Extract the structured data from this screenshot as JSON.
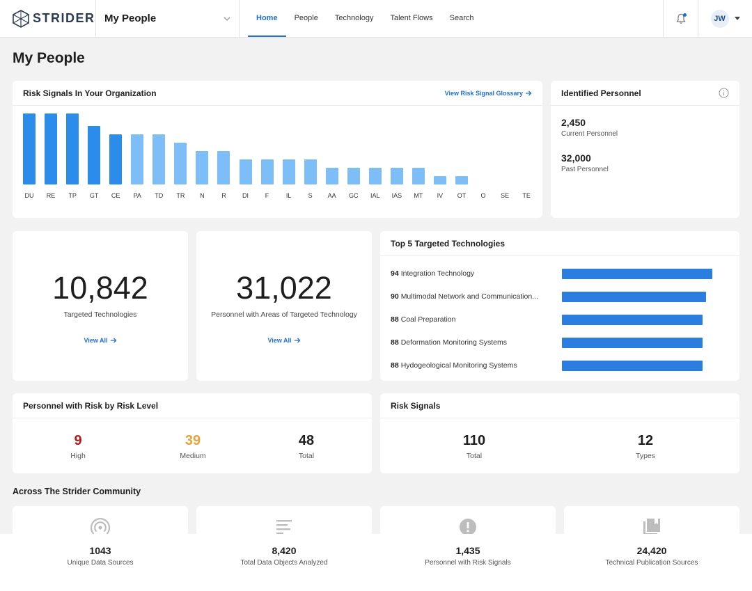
{
  "header": {
    "brand": "STRIDER",
    "selector_label": "My People",
    "nav": [
      "Home",
      "People",
      "Technology",
      "Talent Flows",
      "Search"
    ],
    "active_nav": "Home",
    "user_initials": "JW"
  },
  "page_title": "My People",
  "risk_signals_card": {
    "title": "Risk Signals In Your Organization",
    "link": "View Risk Signal Glossary",
    "chart_data": {
      "type": "bar",
      "categories": [
        "DU",
        "RE",
        "TP",
        "GT",
        "CE",
        "PA",
        "TD",
        "TR",
        "N",
        "R",
        "DI",
        "F",
        "IL",
        "S",
        "AA",
        "GC",
        "IAL",
        "IAS",
        "MT",
        "IV",
        "OT",
        "O",
        "SE",
        "TE"
      ],
      "values": [
        17,
        17,
        17,
        14,
        12,
        12,
        12,
        10,
        8,
        8,
        6,
        6,
        6,
        6,
        4,
        4,
        4,
        4,
        4,
        2,
        2,
        0,
        0,
        0
      ],
      "ylim": [
        0,
        17
      ],
      "colors": {
        "dark": "#2b8cec",
        "light": "#7dbdf8"
      },
      "dark_count": 5
    }
  },
  "identified_personnel": {
    "title": "Identified Personnel",
    "current_value": "2,450",
    "current_label": "Current Personnel",
    "past_value": "32,000",
    "past_label": "Past Personnel"
  },
  "targeted_tech": {
    "value": "10,842",
    "label": "Targeted Technologies",
    "link": "View All"
  },
  "personnel_targeted": {
    "value": "31,022",
    "label": "Personnel with Areas of Targeted Technology",
    "link": "View All"
  },
  "top_tech": {
    "title": "Top 5 Targeted Technologies",
    "items": [
      {
        "score": "94",
        "name": "Integration Technology"
      },
      {
        "score": "90",
        "name": "Multimodal Network and Communication..."
      },
      {
        "score": "88",
        "name": "Coal Preparation"
      },
      {
        "score": "88",
        "name": "Deformation Monitoring Systems"
      },
      {
        "score": "88",
        "name": "Hydogeological Monitoring Systems"
      }
    ],
    "max_score": 94
  },
  "risk_level": {
    "title": "Personnel with Risk by Risk Level",
    "high_value": "9",
    "high_label": "High",
    "medium_value": "39",
    "medium_label": "Medium",
    "total_value": "48",
    "total_label": "Total",
    "colors": {
      "high": "#b01c1c",
      "medium": "#e8a23c"
    }
  },
  "risk_signals": {
    "title": "Risk Signals",
    "total_value": "110",
    "total_label": "Total",
    "types_value": "12",
    "types_label": "Types"
  },
  "community": {
    "title": "Across The Strider Community",
    "stats": [
      {
        "value": "1043",
        "label": "Unique Data Sources",
        "icon": "signal-icon"
      },
      {
        "value": "8,420",
        "label": "Total Data Objects Analyzed",
        "icon": "list-icon"
      },
      {
        "value": "1,435",
        "label": "Personnel with Risk Signals",
        "icon": "alert-icon"
      },
      {
        "value": "24,420",
        "label": "Technical Publication Sources",
        "icon": "book-icon"
      }
    ]
  }
}
